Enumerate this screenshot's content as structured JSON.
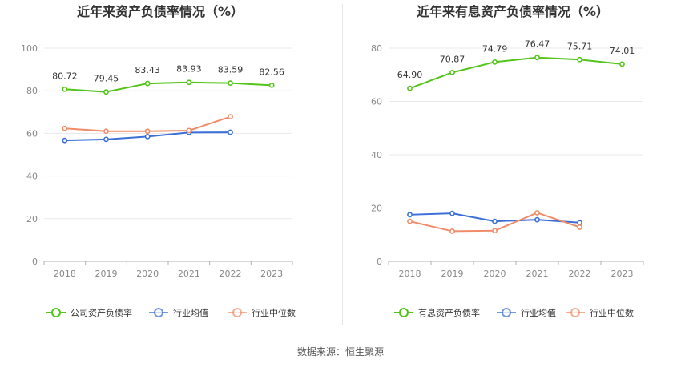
{
  "source_label": "数据来源：恒生聚源",
  "colors": {
    "green": "#52c41a",
    "blue": "#3a6fd8",
    "orange": "#f08c6a",
    "grid": "#e8e8e8",
    "axis": "#b0b0b0"
  },
  "chart_data": [
    {
      "type": "line",
      "title": "近年来资产负债率情况（%）",
      "categories": [
        "2018",
        "2019",
        "2020",
        "2021",
        "2022",
        "2023"
      ],
      "ylim": [
        0,
        100
      ],
      "yticks": [
        0,
        20,
        40,
        60,
        80,
        100
      ],
      "grid": true,
      "legend_placement": "bottom",
      "series": [
        {
          "name": "公司资产负债率",
          "color": "#52c41a",
          "values": [
            80.72,
            79.45,
            83.43,
            83.93,
            83.59,
            82.56
          ],
          "labels": [
            "80.72",
            "79.45",
            "83.43",
            "83.93",
            "83.59",
            "82.56"
          ]
        },
        {
          "name": "行业均值",
          "color": "#3a6fd8",
          "values": [
            56.7,
            57.2,
            58.5,
            60.4,
            60.5,
            null
          ]
        },
        {
          "name": "行业中位数",
          "color": "#f08c6a",
          "values": [
            62.3,
            61.0,
            61.0,
            61.3,
            67.8,
            null
          ]
        }
      ]
    },
    {
      "type": "line",
      "title": "近年来有息资产负债率情况（%）",
      "categories": [
        "2018",
        "2019",
        "2020",
        "2021",
        "2022",
        "2023"
      ],
      "ylim": [
        0,
        80
      ],
      "yticks": [
        0,
        20,
        40,
        60,
        80
      ],
      "grid": true,
      "legend_placement": "bottom",
      "series": [
        {
          "name": "有息资产负债率",
          "color": "#52c41a",
          "values": [
            64.9,
            70.87,
            74.79,
            76.47,
            75.71,
            74.01
          ],
          "labels": [
            "64.90",
            "70.87",
            "74.79",
            "76.47",
            "75.71",
            "74.01"
          ]
        },
        {
          "name": "行业均值",
          "color": "#3a6fd8",
          "values": [
            17.5,
            18.0,
            15.0,
            15.6,
            14.5,
            null
          ]
        },
        {
          "name": "行业中位数",
          "color": "#f08c6a",
          "values": [
            15.0,
            11.3,
            11.5,
            18.2,
            12.8,
            null
          ]
        }
      ]
    }
  ]
}
